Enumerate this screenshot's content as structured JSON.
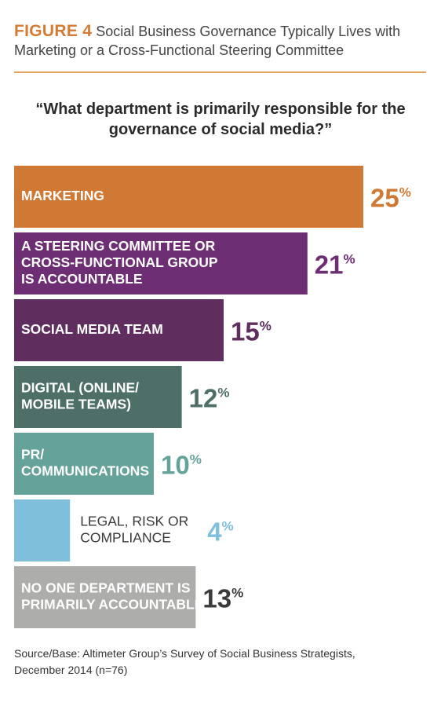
{
  "figure": {
    "number": "FIGURE 4",
    "title_line1": "Social Business Governance Typically Lives with",
    "title_line2": "Marketing or a Cross-Functional Steering Committee"
  },
  "question": {
    "line1": "“What department is primarily responsible for the",
    "line2": "governance of social media?”"
  },
  "source": {
    "line1": "Source/Base: Altimeter Group’s Survey of Social Business Strategists,",
    "line2": "December 2014 (n=76)"
  },
  "chart_data": {
    "type": "bar",
    "orientation": "horizontal",
    "unit": "%",
    "xlim": [
      0,
      25
    ],
    "categories": [
      [
        "MARKETING"
      ],
      [
        "A STEERING COMMITTEE OR",
        "CROSS-FUNCTIONAL GROUP",
        "IS ACCOUNTABLE"
      ],
      [
        "SOCIAL MEDIA TEAM"
      ],
      [
        "DIGITAL (ONLINE/",
        "MOBILE TEAMS)"
      ],
      [
        "PR/",
        "COMMUNICATIONS"
      ],
      [
        "LEGAL, RISK OR",
        "COMPLIANCE"
      ],
      [
        "NO ONE DEPARTMENT IS",
        "PRIMARILY ACCOUNTABLE"
      ]
    ],
    "values": [
      25,
      21,
      15,
      12,
      10,
      4,
      13
    ],
    "colors": [
      "#d07935",
      "#6e2e73",
      "#5f2d5e",
      "#4e6e68",
      "#64a29a",
      "#7fbfdc",
      "#adadab"
    ],
    "value_colors": [
      "#d07935",
      "#6e2e73",
      "#5f2d5e",
      "#4e6e68",
      "#64a29a",
      "#7fbfdc",
      "#3a3a3a"
    ],
    "label_colors": [
      "#ffffff",
      "#ffffff",
      "#ffffff",
      "#ffffff",
      "#ffffff",
      "#3a3a3a",
      "#ffffff"
    ],
    "labels_outside": [
      false,
      false,
      false,
      false,
      false,
      true,
      false
    ],
    "title": "",
    "xlabel": "",
    "ylabel": "",
    "grid": false,
    "legend": "none"
  }
}
